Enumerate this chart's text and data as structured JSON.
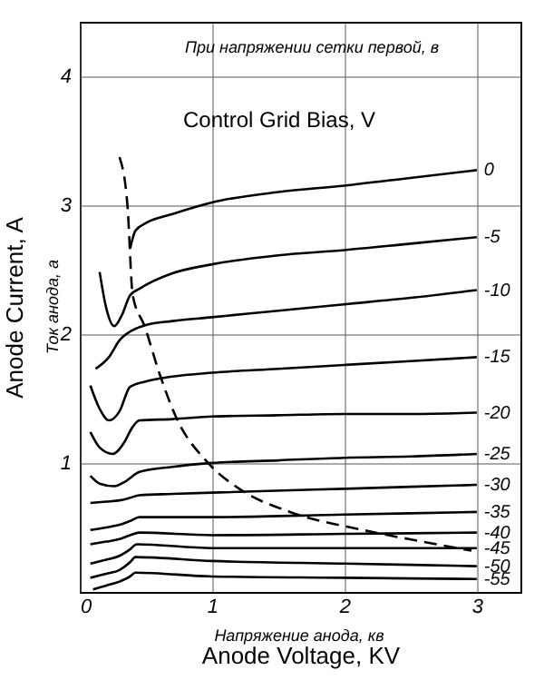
{
  "chart_data": {
    "type": "line",
    "xlabel": "Anode Voltage, KV",
    "ylabel": "Anode Current, A",
    "annotations": [
      "При напряжении сетки первой, в",
      "Ток анода, а",
      "Напряжение анода, кв",
      "Control Grid Bias, V"
    ],
    "xlim": [
      0,
      3.33
    ],
    "ylim": [
      0,
      4.42
    ],
    "xticks": [
      0,
      1,
      2,
      3
    ],
    "yticks": [
      1,
      2,
      3,
      4
    ],
    "grid": true,
    "marker": "none",
    "series": [
      {
        "name": "0",
        "color": "#000000",
        "x": [
          0.38,
          0.42,
          0.5,
          0.7,
          1,
          1.5,
          2,
          2.5,
          3
        ],
        "values": [
          2.66,
          2.8,
          2.86,
          2.93,
          3.02,
          3.1,
          3.15,
          3.21,
          3.27
        ]
      },
      {
        "name": "-5",
        "color": "#000000",
        "x": [
          0.15,
          0.2,
          0.26,
          0.32,
          0.38,
          0.45,
          0.7,
          1,
          1.5,
          2,
          2.5,
          3
        ],
        "values": [
          2.48,
          2.2,
          2.06,
          2.15,
          2.3,
          2.35,
          2.47,
          2.54,
          2.61,
          2.65,
          2.7,
          2.75
        ]
      },
      {
        "name": "-10",
        "color": "#000000",
        "x": [
          0.12,
          0.22,
          0.3,
          0.4,
          0.5,
          0.7,
          1,
          1.5,
          2,
          2.5,
          3
        ],
        "values": [
          1.73,
          1.82,
          1.95,
          2.03,
          2.07,
          2.1,
          2.13,
          2.18,
          2.23,
          2.28,
          2.34
        ]
      },
      {
        "name": "-15",
        "color": "#000000",
        "x": [
          0.08,
          0.15,
          0.22,
          0.3,
          0.38,
          0.49,
          0.7,
          1,
          1.5,
          2,
          2.5,
          3
        ],
        "values": [
          1.6,
          1.42,
          1.33,
          1.4,
          1.59,
          1.63,
          1.67,
          1.7,
          1.73,
          1.76,
          1.79,
          1.82
        ]
      },
      {
        "name": "-20",
        "color": "#000000",
        "x": [
          0.08,
          0.15,
          0.25,
          0.33,
          0.4,
          0.45,
          0.7,
          1,
          1.5,
          2,
          2.5,
          3
        ],
        "values": [
          1.24,
          1.12,
          1.07,
          1.15,
          1.28,
          1.33,
          1.34,
          1.36,
          1.37,
          1.38,
          1.38,
          1.39
        ]
      },
      {
        "name": "-25",
        "color": "#000000",
        "x": [
          0.08,
          0.15,
          0.26,
          0.35,
          0.45,
          0.7,
          1,
          1.5,
          2,
          2.5,
          3
        ],
        "values": [
          0.9,
          0.84,
          0.82,
          0.86,
          0.93,
          0.97,
          1.0,
          1.02,
          1.04,
          1.05,
          1.07
        ]
      },
      {
        "name": "-30",
        "color": "#000000",
        "x": [
          0.08,
          0.2,
          0.3,
          0.38,
          0.45,
          0.7,
          1,
          2,
          3
        ],
        "values": [
          0.69,
          0.7,
          0.71,
          0.73,
          0.75,
          0.76,
          0.77,
          0.8,
          0.83
        ]
      },
      {
        "name": "-35",
        "color": "#000000",
        "x": [
          0.08,
          0.2,
          0.3,
          0.38,
          0.45,
          1,
          2,
          3
        ],
        "values": [
          0.48,
          0.5,
          0.52,
          0.55,
          0.58,
          0.58,
          0.6,
          0.62
        ]
      },
      {
        "name": "-40",
        "color": "#000000",
        "x": [
          0.08,
          0.2,
          0.3,
          0.38,
          0.45,
          1,
          2,
          3
        ],
        "values": [
          0.37,
          0.39,
          0.41,
          0.44,
          0.46,
          0.44,
          0.45,
          0.46
        ]
      },
      {
        "name": "-45",
        "color": "#000000",
        "x": [
          0.08,
          0.2,
          0.3,
          0.38,
          0.43,
          1,
          2,
          3
        ],
        "values": [
          0.22,
          0.25,
          0.28,
          0.33,
          0.37,
          0.34,
          0.34,
          0.34
        ]
      },
      {
        "name": "-50",
        "color": "#000000",
        "x": [
          0.08,
          0.2,
          0.3,
          0.38,
          0.42,
          1,
          2,
          3
        ],
        "values": [
          0.11,
          0.14,
          0.17,
          0.23,
          0.27,
          0.24,
          0.22,
          0.2
        ]
      },
      {
        "name": "-55",
        "color": "#000000",
        "x": [
          0.1,
          0.2,
          0.3,
          0.38,
          0.42,
          1,
          2,
          3
        ],
        "values": [
          0.02,
          0.05,
          0.08,
          0.12,
          0.15,
          0.12,
          0.11,
          0.1
        ]
      },
      {
        "color": "#000000",
        "line_style": "dashed",
        "x": [
          0.3,
          0.36,
          0.4,
          0.49,
          0.6,
          0.73,
          0.97,
          1.22,
          1.59,
          2.14,
          2.59,
          2.96
        ],
        "values": [
          3.37,
          3.0,
          2.3,
          2.06,
          1.7,
          1.35,
          1.0,
          0.79,
          0.62,
          0.48,
          0.39,
          0.32
        ]
      }
    ]
  }
}
